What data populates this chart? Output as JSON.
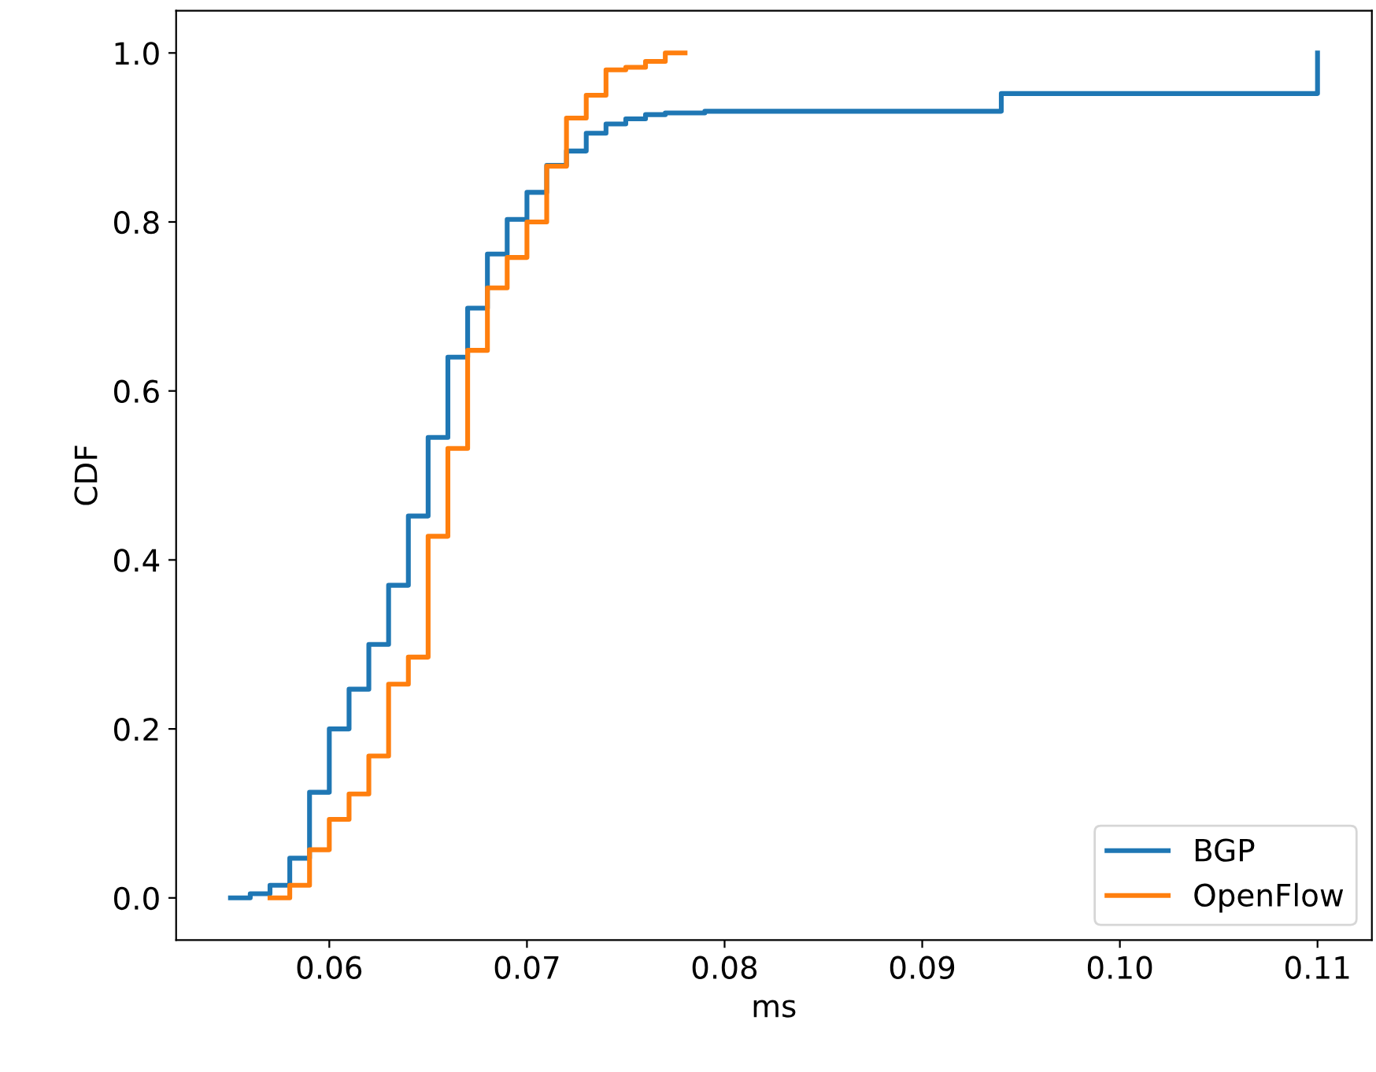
{
  "chart_data": {
    "type": "step",
    "xlabel": "ms",
    "ylabel": "CDF",
    "legend": "bottom right",
    "grid": false,
    "series": [
      {
        "name": "BGP",
        "color": "#1f77b4",
        "x": [
          0.055,
          0.056,
          0.057,
          0.058,
          0.059,
          0.06,
          0.061,
          0.062,
          0.063,
          0.064,
          0.065,
          0.066,
          0.067,
          0.068,
          0.069,
          0.07,
          0.071,
          0.072,
          0.073,
          0.074,
          0.075,
          0.076,
          0.077,
          0.079,
          0.094,
          0.11
        ],
        "values": [
          0.0,
          0.005,
          0.015,
          0.047,
          0.125,
          0.2,
          0.247,
          0.3,
          0.37,
          0.452,
          0.545,
          0.64,
          0.698,
          0.762,
          0.803,
          0.835,
          0.867,
          0.884,
          0.905,
          0.916,
          0.922,
          0.927,
          0.929,
          0.931,
          0.952,
          1.0
        ]
      },
      {
        "name": "OpenFlow",
        "color": "#ff7f0e",
        "x": [
          0.057,
          0.058,
          0.059,
          0.06,
          0.061,
          0.062,
          0.063,
          0.064,
          0.065,
          0.066,
          0.067,
          0.068,
          0.069,
          0.07,
          0.071,
          0.072,
          0.073,
          0.074,
          0.075,
          0.076,
          0.077,
          0.078
        ],
        "values": [
          0.0,
          0.015,
          0.057,
          0.093,
          0.123,
          0.168,
          0.253,
          0.285,
          0.428,
          0.532,
          0.648,
          0.722,
          0.758,
          0.8,
          0.866,
          0.923,
          0.95,
          0.98,
          0.983,
          0.99,
          1.0,
          1.0
        ]
      }
    ],
    "xlim": [
      0.05225,
      0.11275
    ],
    "ylim": [
      -0.05,
      1.05
    ],
    "xticks": [
      {
        "value": 0.06,
        "label": "0.06"
      },
      {
        "value": 0.07,
        "label": "0.07"
      },
      {
        "value": 0.08,
        "label": "0.08"
      },
      {
        "value": 0.09,
        "label": "0.09"
      },
      {
        "value": 0.1,
        "label": "0.10"
      },
      {
        "value": 0.11,
        "label": "0.11"
      }
    ],
    "yticks": [
      {
        "value": 0.0,
        "label": "0.0"
      },
      {
        "value": 0.2,
        "label": "0.2"
      },
      {
        "value": 0.4,
        "label": "0.4"
      },
      {
        "value": 0.6,
        "label": "0.6"
      },
      {
        "value": 0.8,
        "label": "0.8"
      },
      {
        "value": 1.0,
        "label": "1.0"
      }
    ]
  }
}
